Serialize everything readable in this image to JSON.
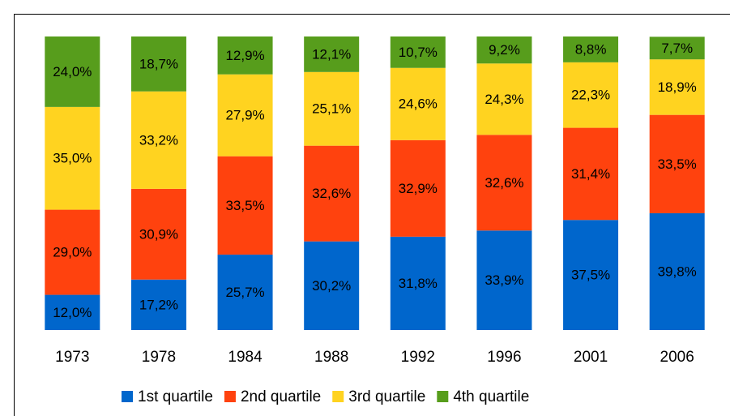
{
  "chart_data": {
    "type": "stacked_bar",
    "categories": [
      "1973",
      "1978",
      "1984",
      "1988",
      "1992",
      "1996",
      "2001",
      "2006"
    ],
    "series": [
      {
        "name": "1st quartile",
        "color": "#0066cc",
        "values": [
          12.0,
          17.2,
          25.7,
          30.2,
          31.8,
          33.9,
          37.5,
          39.8
        ],
        "value_labels": [
          "12,0%",
          "17,2%",
          "25,7%",
          "30,2%",
          "31,8%",
          "33,9%",
          "37,5%",
          "39,8%"
        ]
      },
      {
        "name": "2nd quartile",
        "color": "#ff420e",
        "values": [
          29.0,
          30.9,
          33.5,
          32.6,
          32.9,
          32.6,
          31.4,
          33.5
        ],
        "value_labels": [
          "29,0%",
          "30,9%",
          "33,5%",
          "32,6%",
          "32,9%",
          "32,6%",
          "31,4%",
          "33,5%"
        ]
      },
      {
        "name": "3rd quartile",
        "color": "#ffd320",
        "values": [
          35.0,
          33.2,
          27.9,
          25.1,
          24.6,
          24.3,
          22.3,
          18.9
        ],
        "value_labels": [
          "35,0%",
          "33,2%",
          "27,9%",
          "25,1%",
          "24,6%",
          "24,3%",
          "22,3%",
          "18,9%"
        ]
      },
      {
        "name": "4th quartile",
        "color": "#579d1c",
        "values": [
          24.0,
          18.7,
          12.9,
          12.1,
          10.7,
          9.2,
          8.8,
          7.7
        ],
        "value_labels": [
          "24,0%",
          "18,7%",
          "12,9%",
          "12,1%",
          "10,7%",
          "9,2%",
          "8,8%",
          "7,7%"
        ]
      }
    ],
    "ylim": [
      0,
      100
    ],
    "legend": "bottom"
  }
}
